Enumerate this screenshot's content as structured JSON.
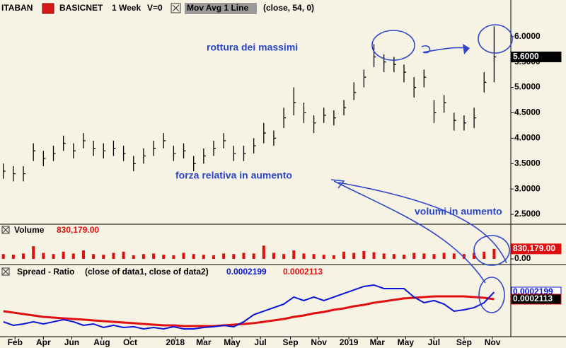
{
  "chart_data": [
    {
      "type": "ohlc",
      "symbol": "ITABAN",
      "name": "BASICNET",
      "interval": "1 Week",
      "volume_flag": "V=0",
      "indicator": "Mov Avg 1 Line",
      "indicator_params": "(close, 54, 0)",
      "x": [
        1,
        4,
        7,
        10,
        13,
        16,
        19,
        22,
        25,
        28,
        31,
        34,
        37,
        40,
        43,
        46,
        49,
        52,
        55,
        58,
        61,
        64,
        67,
        70,
        73,
        76,
        79,
        82,
        85,
        88,
        91,
        94,
        97,
        100,
        103,
        106,
        109,
        112,
        115,
        118,
        121,
        124,
        127,
        130,
        133,
        136,
        139,
        142,
        145,
        148
      ],
      "high": [
        3.5,
        3.45,
        3.45,
        3.9,
        3.75,
        3.85,
        4.05,
        3.9,
        4.1,
        3.95,
        3.9,
        3.95,
        3.85,
        3.65,
        3.8,
        3.95,
        4.1,
        3.85,
        3.9,
        3.65,
        3.8,
        3.95,
        4.1,
        3.85,
        3.85,
        4.0,
        4.3,
        4.15,
        4.6,
        5.0,
        4.7,
        4.45,
        4.6,
        4.55,
        4.75,
        5.1,
        5.35,
        5.85,
        5.65,
        5.6,
        5.45,
        5.2,
        5.35,
        4.75,
        4.85,
        4.5,
        4.45,
        4.6,
        5.3,
        6.2
      ],
      "low": [
        3.2,
        3.15,
        3.15,
        3.55,
        3.45,
        3.55,
        3.75,
        3.6,
        3.8,
        3.65,
        3.6,
        3.65,
        3.55,
        3.35,
        3.5,
        3.65,
        3.8,
        3.55,
        3.6,
        3.35,
        3.5,
        3.65,
        3.8,
        3.55,
        3.55,
        3.7,
        3.9,
        3.85,
        4.2,
        4.45,
        4.3,
        4.1,
        4.3,
        4.25,
        4.45,
        4.75,
        5.0,
        5.4,
        5.3,
        5.3,
        5.1,
        4.8,
        5.0,
        4.3,
        4.5,
        4.15,
        4.15,
        4.2,
        4.9,
        5.1
      ],
      "values": [
        3.35,
        3.3,
        3.3,
        3.75,
        3.6,
        3.7,
        3.9,
        3.75,
        3.95,
        3.8,
        3.75,
        3.8,
        3.7,
        3.5,
        3.65,
        3.8,
        3.95,
        3.7,
        3.75,
        3.5,
        3.65,
        3.8,
        3.95,
        3.7,
        3.7,
        3.85,
        4.1,
        4.0,
        4.4,
        4.7,
        4.5,
        4.3,
        4.45,
        4.4,
        4.6,
        4.9,
        5.2,
        5.6,
        5.5,
        5.45,
        5.3,
        5.0,
        5.2,
        4.5,
        4.7,
        4.35,
        4.3,
        4.4,
        5.1,
        5.6
      ],
      "value_labels": [
        null,
        null,
        null,
        null,
        null,
        null,
        null,
        null,
        null,
        null,
        null,
        null,
        null,
        null,
        null,
        null,
        null,
        null,
        null,
        null,
        null,
        null,
        null,
        null,
        null,
        null,
        null,
        null,
        null,
        null,
        null,
        null,
        null,
        null,
        null,
        null,
        null,
        null,
        null,
        null,
        null,
        null,
        null,
        null,
        null,
        null,
        null,
        null,
        null,
        "5.6000"
      ],
      "color": "#000000",
      "ylim": [
        2.32,
        6.72
      ],
      "yticks": [
        {
          "value": 2.5,
          "label": "2.5000"
        },
        {
          "value": 3,
          "label": "3.0000"
        },
        {
          "value": 3.5,
          "label": "3.5000"
        },
        {
          "value": 4,
          "label": "4.0000"
        },
        {
          "value": 4.5,
          "label": "4.5000"
        },
        {
          "value": 5,
          "label": "5.0000"
        },
        {
          "value": 5.5,
          "label": "5.5000"
        },
        {
          "value": 6,
          "label": "6.0000"
        }
      ]
    },
    {
      "type": "bar",
      "title": "Volume",
      "x": [
        1,
        4,
        7,
        10,
        13,
        16,
        19,
        22,
        25,
        28,
        31,
        34,
        37,
        40,
        43,
        46,
        49,
        52,
        55,
        58,
        61,
        64,
        67,
        70,
        73,
        76,
        79,
        82,
        85,
        88,
        91,
        94,
        97,
        100,
        103,
        106,
        109,
        112,
        115,
        118,
        121,
        124,
        127,
        130,
        133,
        136,
        139,
        142,
        145,
        148
      ],
      "values": [
        400000,
        350000,
        450000,
        1050000,
        500000,
        400000,
        600000,
        450000,
        700000,
        400000,
        350000,
        500000,
        600000,
        300000,
        400000,
        450000,
        350000,
        300000,
        500000,
        400000,
        350000,
        300000,
        450000,
        400000,
        500000,
        450000,
        1100000,
        500000,
        400000,
        700000,
        450000,
        400000,
        350000,
        300000,
        600000,
        500000,
        650000,
        550000,
        450000,
        400000,
        350000,
        500000,
        450000,
        400000,
        500000,
        450000,
        400000,
        500000,
        600000,
        830179
      ],
      "value_labels": [
        null,
        null,
        null,
        null,
        null,
        null,
        null,
        null,
        null,
        null,
        null,
        null,
        null,
        null,
        null,
        null,
        null,
        null,
        null,
        null,
        null,
        null,
        null,
        null,
        null,
        null,
        null,
        null,
        null,
        null,
        null,
        null,
        null,
        null,
        null,
        null,
        null,
        null,
        null,
        null,
        null,
        null,
        null,
        null,
        null,
        null,
        null,
        null,
        null,
        "830,179.00"
      ],
      "color": "#e01010",
      "ylim": [
        0,
        2700000
      ],
      "yticks": [
        {
          "value": 0,
          "label": "0.00"
        }
      ]
    },
    {
      "type": "line",
      "title": "Spread - Ratio",
      "subtitle": "(close of data1, close of data2)",
      "x": [
        1,
        4,
        7,
        10,
        13,
        16,
        19,
        22,
        25,
        28,
        31,
        34,
        37,
        40,
        43,
        46,
        49,
        52,
        55,
        58,
        61,
        64,
        67,
        70,
        73,
        76,
        79,
        82,
        85,
        88,
        91,
        94,
        97,
        100,
        103,
        106,
        109,
        112,
        115,
        118,
        121,
        124,
        127,
        130,
        133,
        136,
        139,
        142,
        145,
        148
      ],
      "series": [
        {
          "color": "#0a14d6",
          "values": [
            0.0001838,
            0.0001795,
            0.0001812,
            0.0001838,
            0.0001812,
            0.0001838,
            0.0001864,
            0.0001838,
            0.0001795,
            0.0001812,
            0.0001769,
            0.0001795,
            0.0001769,
            0.0001778,
            0.0001752,
            0.0001769,
            0.0001752,
            0.0001778,
            0.0001752,
            0.0001752,
            0.0001769,
            0.0001778,
            0.0001795,
            0.0001778,
            0.0001838,
            0.0001924,
            0.0001967,
            0.000201,
            0.0002053,
            0.0002139,
            0.0002096,
            0.0002139,
            0.0002096,
            0.0002139,
            0.0002182,
            0.0002225,
            0.0002268,
            0.0002285,
            0.0002242,
            0.0002242,
            0.0002242,
            0.0002139,
            0.000207,
            0.0002096,
            0.0002053,
            0.0001967,
            0.0001984,
            0.000201,
            0.000207,
            0.0002199
          ],
          "value_labels": [
            null,
            null,
            null,
            null,
            null,
            null,
            null,
            null,
            null,
            null,
            null,
            null,
            null,
            null,
            null,
            null,
            null,
            null,
            null,
            null,
            null,
            null,
            null,
            null,
            null,
            null,
            null,
            null,
            null,
            null,
            null,
            null,
            null,
            null,
            null,
            null,
            null,
            null,
            null,
            null,
            null,
            null,
            null,
            null,
            null,
            null,
            null,
            null,
            null,
            "0.0002199"
          ]
        },
        {
          "color": "#e01010",
          "values": [
            0.0001967,
            0.000195,
            0.0001932,
            0.0001915,
            0.0001898,
            0.0001889,
            0.0001881,
            0.0001872,
            0.0001864,
            0.0001855,
            0.0001846,
            0.0001838,
            0.0001829,
            0.0001821,
            0.0001812,
            0.0001803,
            0.0001795,
            0.0001795,
            0.0001786,
            0.0001786,
            0.0001786,
            0.0001786,
            0.0001795,
            0.0001803,
            0.0001812,
            0.0001821,
            0.0001838,
            0.0001855,
            0.0001872,
            0.0001898,
            0.0001915,
            0.0001941,
            0.0001958,
            0.0001984,
            0.0002001,
            0.0002027,
            0.0002044,
            0.000207,
            0.0002087,
            0.0002104,
            0.0002122,
            0.000213,
            0.0002139,
            0.0002147,
            0.0002147,
            0.0002147,
            0.0002147,
            0.0002139,
            0.000213,
            0.0002113
          ],
          "value_labels": [
            null,
            null,
            null,
            null,
            null,
            null,
            null,
            null,
            null,
            null,
            null,
            null,
            null,
            null,
            null,
            null,
            null,
            null,
            null,
            null,
            null,
            null,
            null,
            null,
            null,
            null,
            null,
            null,
            null,
            null,
            null,
            null,
            null,
            null,
            null,
            null,
            null,
            null,
            null,
            null,
            null,
            null,
            null,
            null,
            null,
            null,
            null,
            null,
            null,
            "0.0002113"
          ]
        }
      ],
      "ylim": [
        0.0001657,
        0.0002517
      ],
      "xlim": [
        0,
        153
      ],
      "xticks": [
        {
          "value": 4.5,
          "label": "Feb"
        },
        {
          "value": 13,
          "label": "Apr"
        },
        {
          "value": 21.5,
          "label": "Jun"
        },
        {
          "value": 30.5,
          "label": "Aug"
        },
        {
          "value": 39,
          "label": "Oct"
        },
        {
          "value": 52.5,
          "label": "2018"
        },
        {
          "value": 61,
          "label": "Mar"
        },
        {
          "value": 69.5,
          "label": "May"
        },
        {
          "value": 78,
          "label": "Jul"
        },
        {
          "value": 87,
          "label": "Sep"
        },
        {
          "value": 95.5,
          "label": "Nov"
        },
        {
          "value": 104.5,
          "label": "2019"
        },
        {
          "value": 113,
          "label": "Mar"
        },
        {
          "value": 121.5,
          "label": "May"
        },
        {
          "value": 130,
          "label": "Jul"
        },
        {
          "value": 139,
          "label": "Sep"
        },
        {
          "value": 147.5,
          "label": "Nov"
        }
      ]
    }
  ],
  "annotations": [
    "rottura dei massimi",
    "forza relativa in aumento",
    "volumi in aumento"
  ]
}
